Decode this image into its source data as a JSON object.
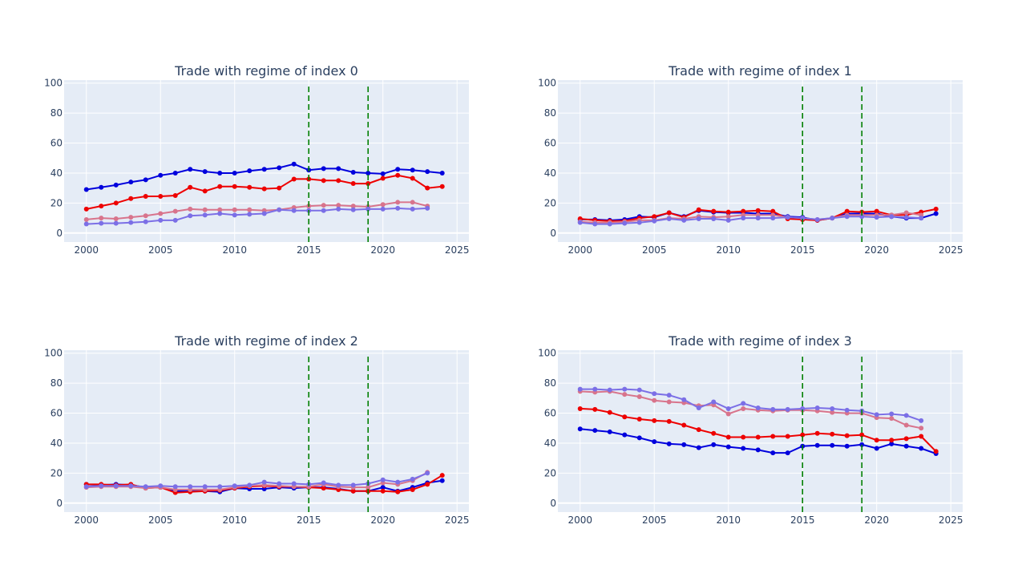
{
  "figure": {
    "background": "#ffffff",
    "plot_background": "#e5ecf6",
    "grid_color": "#ffffff",
    "text_color": "#2a3f5f"
  },
  "chart_data": [
    {
      "type": "line",
      "title": "Trade with regime of index 0",
      "xlabel": "",
      "ylabel": "",
      "xlim": [
        1998.5,
        2025.8
      ],
      "ylim": [
        -6,
        102
      ],
      "xticks": [
        2000,
        2005,
        2010,
        2015,
        2020,
        2025
      ],
      "yticks": [
        0,
        20,
        40,
        60,
        80,
        100
      ],
      "grid": true,
      "vlines": [
        {
          "x": 2015,
          "color": "#008000",
          "dash": "dashed"
        },
        {
          "x": 2019,
          "color": "#008000",
          "dash": "dashed"
        }
      ],
      "series": [
        {
          "color": "#0000dd",
          "x": [
            2000,
            2001,
            2002,
            2003,
            2004,
            2005,
            2006,
            2007,
            2008,
            2009,
            2010,
            2011,
            2012,
            2013,
            2014,
            2015,
            2016,
            2017,
            2018,
            2019,
            2020,
            2021,
            2022,
            2023,
            2024
          ],
          "values": [
            29,
            30.5,
            32,
            34,
            35.5,
            38.5,
            40,
            42.5,
            41,
            40,
            40,
            41.5,
            42.5,
            43.5,
            46,
            42,
            43,
            43,
            40.5,
            40,
            39.5,
            42.5,
            42,
            41,
            40
          ]
        },
        {
          "color": "#ee0000",
          "x": [
            2000,
            2001,
            2002,
            2003,
            2004,
            2005,
            2006,
            2007,
            2008,
            2009,
            2010,
            2011,
            2012,
            2013,
            2014,
            2015,
            2016,
            2017,
            2018,
            2019,
            2020,
            2021,
            2022,
            2023,
            2024
          ],
          "values": [
            16,
            18,
            20,
            23,
            24.5,
            24.5,
            25,
            30.5,
            28,
            31,
            31,
            30.5,
            29.5,
            30,
            36,
            36,
            35,
            35,
            33,
            33,
            36.5,
            38.5,
            36.5,
            30,
            31
          ]
        },
        {
          "color": "#d8748c",
          "x": [
            2000,
            2001,
            2002,
            2003,
            2004,
            2005,
            2006,
            2007,
            2008,
            2009,
            2010,
            2011,
            2012,
            2013,
            2014,
            2015,
            2016,
            2017,
            2018,
            2019,
            2020,
            2021,
            2022,
            2023
          ],
          "values": [
            9,
            10,
            9.5,
            10.5,
            11.5,
            13,
            14.5,
            16,
            15.5,
            15.5,
            15.5,
            15.5,
            15,
            15.5,
            17,
            18,
            18.5,
            18.5,
            18,
            17.5,
            19,
            20.5,
            20.5,
            18
          ]
        },
        {
          "color": "#7b6fe6",
          "x": [
            2000,
            2001,
            2002,
            2003,
            2004,
            2005,
            2006,
            2007,
            2008,
            2009,
            2010,
            2011,
            2012,
            2013,
            2014,
            2015,
            2016,
            2017,
            2018,
            2019,
            2020,
            2021,
            2022,
            2023
          ],
          "values": [
            6,
            6.5,
            6.5,
            7,
            7.5,
            8.5,
            8.5,
            11.5,
            12,
            13,
            12,
            12.5,
            13,
            15.5,
            15,
            15,
            15,
            16,
            15.5,
            16,
            16,
            16.5,
            16,
            16.5
          ]
        }
      ]
    },
    {
      "type": "line",
      "title": "Trade with regime of index 1",
      "xlabel": "",
      "ylabel": "",
      "xlim": [
        1998.5,
        2025.8
      ],
      "ylim": [
        -6,
        102
      ],
      "xticks": [
        2000,
        2005,
        2010,
        2015,
        2020,
        2025
      ],
      "yticks": [
        0,
        20,
        40,
        60,
        80,
        100
      ],
      "grid": true,
      "vlines": [
        {
          "x": 2015,
          "color": "#008000",
          "dash": "dashed"
        },
        {
          "x": 2019,
          "color": "#008000",
          "dash": "dashed"
        }
      ],
      "series": [
        {
          "color": "#0000dd",
          "x": [
            2000,
            2001,
            2002,
            2003,
            2004,
            2005,
            2006,
            2007,
            2008,
            2009,
            2010,
            2011,
            2012,
            2013,
            2014,
            2015,
            2016,
            2017,
            2018,
            2019,
            2020,
            2021,
            2022,
            2023,
            2024
          ],
          "values": [
            9,
            9,
            8.5,
            9,
            11,
            10.5,
            13.5,
            11,
            15,
            14,
            13.5,
            13.5,
            13,
            13,
            11,
            10.5,
            8.5,
            10,
            13,
            13,
            13,
            11,
            10,
            10,
            13
          ]
        },
        {
          "color": "#ee0000",
          "x": [
            2000,
            2001,
            2002,
            2003,
            2004,
            2005,
            2006,
            2007,
            2008,
            2009,
            2010,
            2011,
            2012,
            2013,
            2014,
            2015,
            2016,
            2017,
            2018,
            2019,
            2020,
            2021,
            2022,
            2023,
            2024
          ],
          "values": [
            9.5,
            8.5,
            8,
            8,
            10,
            11,
            13.5,
            10.5,
            15.5,
            14.5,
            14,
            14.5,
            15,
            14.5,
            9.5,
            9,
            8.5,
            10,
            14.5,
            14,
            14.5,
            12,
            12,
            14,
            16
          ]
        },
        {
          "color": "#d8748c",
          "x": [
            2000,
            2001,
            2002,
            2003,
            2004,
            2005,
            2006,
            2007,
            2008,
            2009,
            2010,
            2011,
            2012,
            2013,
            2014,
            2015,
            2016,
            2017,
            2018,
            2019,
            2020,
            2021,
            2022,
            2023
          ],
          "values": [
            7.5,
            7,
            7,
            7.5,
            8.5,
            8.5,
            10,
            9.5,
            11,
            10.5,
            11,
            12,
            12,
            12,
            10.5,
            10,
            9,
            10,
            12,
            12,
            12,
            12,
            13.5,
            12
          ]
        },
        {
          "color": "#7b6fe6",
          "x": [
            2000,
            2001,
            2002,
            2003,
            2004,
            2005,
            2006,
            2007,
            2008,
            2009,
            2010,
            2011,
            2012,
            2013,
            2014,
            2015,
            2016,
            2017,
            2018,
            2019,
            2020,
            2021,
            2022,
            2023
          ],
          "values": [
            7,
            6,
            6,
            6.5,
            7,
            8,
            9.5,
            8.5,
            9.5,
            9.5,
            8.5,
            10,
            10,
            10,
            10.5,
            10,
            9,
            10,
            11,
            11,
            10.5,
            11,
            10.5,
            10
          ]
        }
      ]
    },
    {
      "type": "line",
      "title": "Trade with regime of index 2",
      "xlabel": "",
      "ylabel": "",
      "xlim": [
        1998.5,
        2025.8
      ],
      "ylim": [
        -6,
        102
      ],
      "xticks": [
        2000,
        2005,
        2010,
        2015,
        2020,
        2025
      ],
      "yticks": [
        0,
        20,
        40,
        60,
        80,
        100
      ],
      "grid": true,
      "vlines": [
        {
          "x": 2015,
          "color": "#008000",
          "dash": "dashed"
        },
        {
          "x": 2019,
          "color": "#008000",
          "dash": "dashed"
        }
      ],
      "series": [
        {
          "color": "#0000dd",
          "x": [
            2000,
            2001,
            2002,
            2003,
            2004,
            2005,
            2006,
            2007,
            2008,
            2009,
            2010,
            2011,
            2012,
            2013,
            2014,
            2015,
            2016,
            2017,
            2018,
            2019,
            2020,
            2021,
            2022,
            2023,
            2024
          ],
          "values": [
            12.5,
            12,
            12.5,
            12,
            10.5,
            10.5,
            8,
            8,
            8,
            7.5,
            10,
            9.5,
            9.5,
            10.5,
            10,
            10.5,
            10.5,
            9.5,
            8,
            8,
            10.5,
            8,
            10.5,
            13.5,
            15
          ]
        },
        {
          "color": "#ee0000",
          "x": [
            2000,
            2001,
            2002,
            2003,
            2004,
            2005,
            2006,
            2007,
            2008,
            2009,
            2010,
            2011,
            2012,
            2013,
            2014,
            2015,
            2016,
            2017,
            2018,
            2019,
            2020,
            2021,
            2022,
            2023,
            2024
          ],
          "values": [
            12.5,
            12.5,
            12,
            12.5,
            10,
            10.5,
            7,
            7.5,
            8,
            8.5,
            10,
            11,
            11.5,
            11,
            11,
            10.5,
            10,
            9,
            8,
            8,
            8,
            7.5,
            9,
            12.5,
            18.5
          ]
        },
        {
          "color": "#d8748c",
          "x": [
            2000,
            2001,
            2002,
            2003,
            2004,
            2005,
            2006,
            2007,
            2008,
            2009,
            2010,
            2011,
            2012,
            2013,
            2014,
            2015,
            2016,
            2017,
            2018,
            2019,
            2020,
            2021,
            2022,
            2023
          ],
          "values": [
            10.5,
            11,
            11,
            11,
            10,
            10.5,
            9,
            9,
            9,
            9,
            10.5,
            11.5,
            12,
            11.5,
            11,
            11,
            12.5,
            11,
            10.5,
            10.5,
            13.5,
            12.5,
            15,
            20.5
          ]
        },
        {
          "color": "#7b6fe6",
          "x": [
            2000,
            2001,
            2002,
            2003,
            2004,
            2005,
            2006,
            2007,
            2008,
            2009,
            2010,
            2011,
            2012,
            2013,
            2014,
            2015,
            2016,
            2017,
            2018,
            2019,
            2020,
            2021,
            2022,
            2023
          ],
          "values": [
            11,
            11.5,
            11.5,
            11.5,
            11,
            11.5,
            11,
            11,
            11,
            11,
            11.5,
            12,
            14,
            13,
            13,
            12.5,
            13.5,
            12,
            12,
            13,
            15.5,
            14,
            16,
            20
          ]
        }
      ]
    },
    {
      "type": "line",
      "title": "Trade with regime of index 3",
      "xlabel": "",
      "ylabel": "",
      "xlim": [
        1998.5,
        2025.8
      ],
      "ylim": [
        -6,
        102
      ],
      "xticks": [
        2000,
        2005,
        2010,
        2015,
        2020,
        2025
      ],
      "yticks": [
        0,
        20,
        40,
        60,
        80,
        100
      ],
      "grid": true,
      "vlines": [
        {
          "x": 2015,
          "color": "#008000",
          "dash": "dashed"
        },
        {
          "x": 2019,
          "color": "#008000",
          "dash": "dashed"
        }
      ],
      "series": [
        {
          "color": "#0000dd",
          "x": [
            2000,
            2001,
            2002,
            2003,
            2004,
            2005,
            2006,
            2007,
            2008,
            2009,
            2010,
            2011,
            2012,
            2013,
            2014,
            2015,
            2016,
            2017,
            2018,
            2019,
            2020,
            2021,
            2022,
            2023,
            2024
          ],
          "values": [
            49.5,
            48.5,
            47.5,
            45.5,
            43.5,
            41,
            39.5,
            39,
            37,
            39,
            37.5,
            36.5,
            35.5,
            33.5,
            33.5,
            38,
            38.5,
            38.5,
            38,
            39,
            36.5,
            39.5,
            38,
            36.5,
            33
          ]
        },
        {
          "color": "#ee0000",
          "x": [
            2000,
            2001,
            2002,
            2003,
            2004,
            2005,
            2006,
            2007,
            2008,
            2009,
            2010,
            2011,
            2012,
            2013,
            2014,
            2015,
            2016,
            2017,
            2018,
            2019,
            2020,
            2021,
            2022,
            2023,
            2024
          ],
          "values": [
            63,
            62.5,
            60.5,
            57.5,
            56,
            55,
            54.5,
            52,
            49,
            46.5,
            44,
            44,
            44,
            44.5,
            44.5,
            45.5,
            46.5,
            46,
            45,
            45.5,
            42,
            42,
            43,
            44.5,
            34.5
          ]
        },
        {
          "color": "#d8748c",
          "x": [
            2000,
            2001,
            2002,
            2003,
            2004,
            2005,
            2006,
            2007,
            2008,
            2009,
            2010,
            2011,
            2012,
            2013,
            2014,
            2015,
            2016,
            2017,
            2018,
            2019,
            2020,
            2021,
            2022,
            2023
          ],
          "values": [
            74.5,
            74,
            74.5,
            72.5,
            71,
            68.5,
            67.5,
            67,
            65,
            65.5,
            59.5,
            63,
            62,
            61.5,
            62,
            62,
            61.5,
            60.5,
            60,
            60,
            57,
            56.5,
            52,
            50
          ]
        },
        {
          "color": "#7b6fe6",
          "x": [
            2000,
            2001,
            2002,
            2003,
            2004,
            2005,
            2006,
            2007,
            2008,
            2009,
            2010,
            2011,
            2012,
            2013,
            2014,
            2015,
            2016,
            2017,
            2018,
            2019,
            2020,
            2021,
            2022,
            2023
          ],
          "values": [
            76,
            76,
            75.5,
            76,
            75.5,
            73,
            72,
            69,
            63.5,
            67.5,
            63,
            66.5,
            63.5,
            62.5,
            62.5,
            63,
            63.5,
            63,
            62,
            61.5,
            59,
            59.5,
            58.5,
            55
          ]
        }
      ]
    }
  ]
}
